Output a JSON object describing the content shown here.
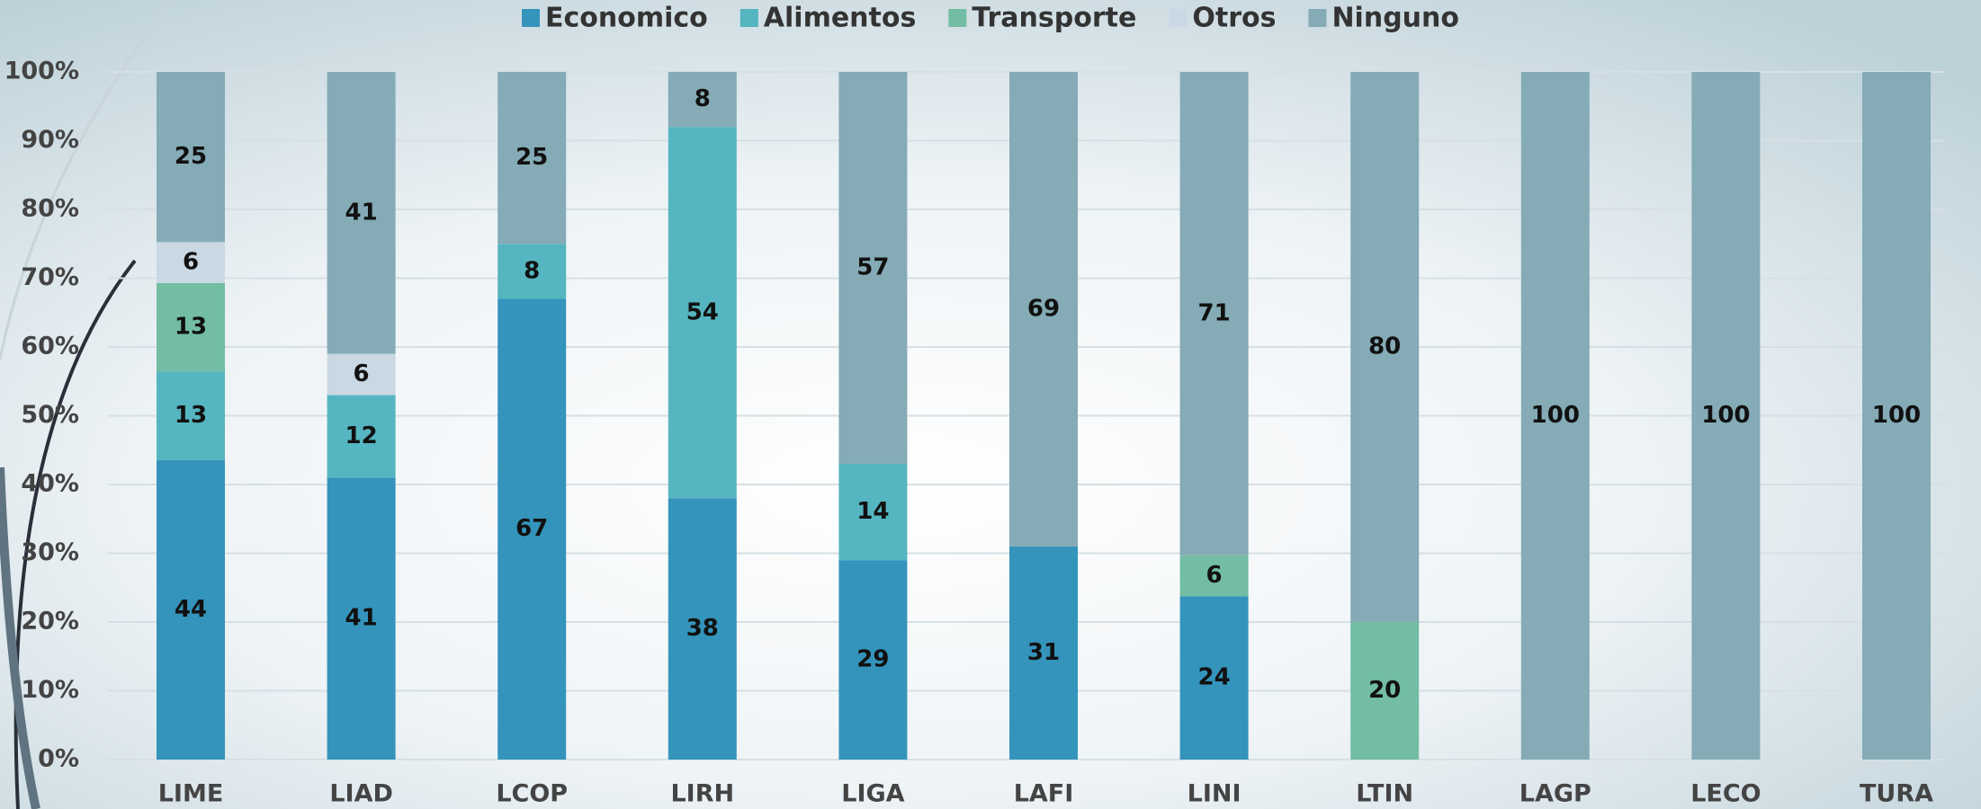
{
  "chart_data": {
    "type": "stacked_bar_100",
    "categories": [
      "LIME",
      "LIAD",
      "LCOP",
      "LIRH",
      "LIGA",
      "LAFI",
      "LINI",
      "LTIN",
      "LAGP",
      "LECO",
      "TURA"
    ],
    "series": [
      {
        "name": "Economico",
        "color": "#3494bb",
        "values": [
          44,
          41,
          67,
          38,
          29,
          31,
          24,
          null,
          null,
          null,
          null
        ]
      },
      {
        "name": "Alimentos",
        "color": "#55b5c0",
        "values": [
          13,
          12,
          8,
          54,
          14,
          null,
          null,
          null,
          null,
          null,
          null
        ]
      },
      {
        "name": "Transporte",
        "color": "#72bda3",
        "values": [
          13,
          null,
          null,
          null,
          null,
          null,
          6,
          20,
          null,
          null,
          null
        ]
      },
      {
        "name": "Otros",
        "color": "#c9d8e3",
        "values": [
          6,
          6,
          null,
          null,
          null,
          null,
          null,
          null,
          null,
          null,
          null
        ]
      },
      {
        "name": "Ninguno",
        "color": "#84abb6",
        "values": [
          25,
          41,
          25,
          8,
          57,
          69,
          71,
          80,
          100,
          100,
          100
        ]
      }
    ],
    "ylim": [
      0,
      100
    ],
    "yticks": [
      {
        "value": 0,
        "label": "0%"
      },
      {
        "value": 10,
        "label": "10%"
      },
      {
        "value": 20,
        "label": "20%"
      },
      {
        "value": 30,
        "label": "30%"
      },
      {
        "value": 40,
        "label": "40%"
      },
      {
        "value": 50,
        "label": "50%"
      },
      {
        "value": 60,
        "label": "60%"
      },
      {
        "value": 70,
        "label": "70%"
      },
      {
        "value": 80,
        "label": "80%"
      },
      {
        "value": 90,
        "label": "90%"
      },
      {
        "value": 100,
        "label": "100%"
      }
    ],
    "grid": true,
    "legend": "top"
  }
}
